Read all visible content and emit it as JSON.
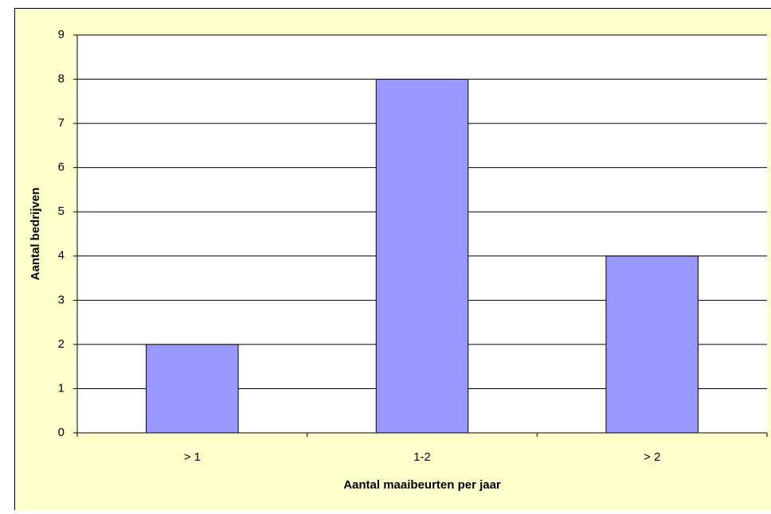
{
  "chart_data": {
    "type": "bar",
    "x_label": "Aantal maaibeurten per jaar",
    "y_label": "Aantal bedrijven",
    "categories": [
      "> 1",
      "1-2",
      "> 2"
    ],
    "values": [
      2,
      8,
      4
    ],
    "color": "#9999ff",
    "ylim": [
      0,
      9
    ],
    "yticks": [
      0,
      1,
      2,
      3,
      4,
      5,
      6,
      7,
      8,
      9
    ],
    "grid": true
  }
}
